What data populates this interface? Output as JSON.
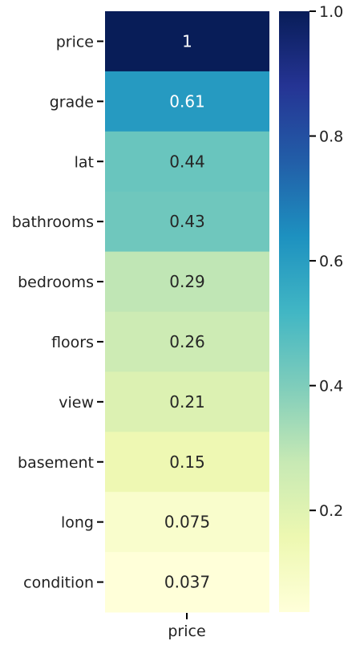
{
  "chart_data": {
    "type": "heatmap",
    "x_categories": [
      "price"
    ],
    "y_categories": [
      "price",
      "grade",
      "lat",
      "bathrooms",
      "bedrooms",
      "floors",
      "view",
      "basement",
      "long",
      "condition"
    ],
    "values": [
      1,
      0.61,
      0.44,
      0.43,
      0.29,
      0.26,
      0.21,
      0.15,
      0.075,
      0.037
    ],
    "cell_labels": [
      "1",
      "0.61",
      "0.44",
      "0.43",
      "0.29",
      "0.26",
      "0.21",
      "0.15",
      "0.075",
      "0.037"
    ],
    "colormap": "YlGnBu",
    "colorbar": {
      "range": [
        0.037,
        1.0
      ],
      "ticks": [
        0.2,
        0.4,
        0.6,
        0.8,
        1.0
      ],
      "tick_labels": [
        "0.2",
        "0.4",
        "0.6",
        "0.8",
        "1.0"
      ]
    }
  }
}
